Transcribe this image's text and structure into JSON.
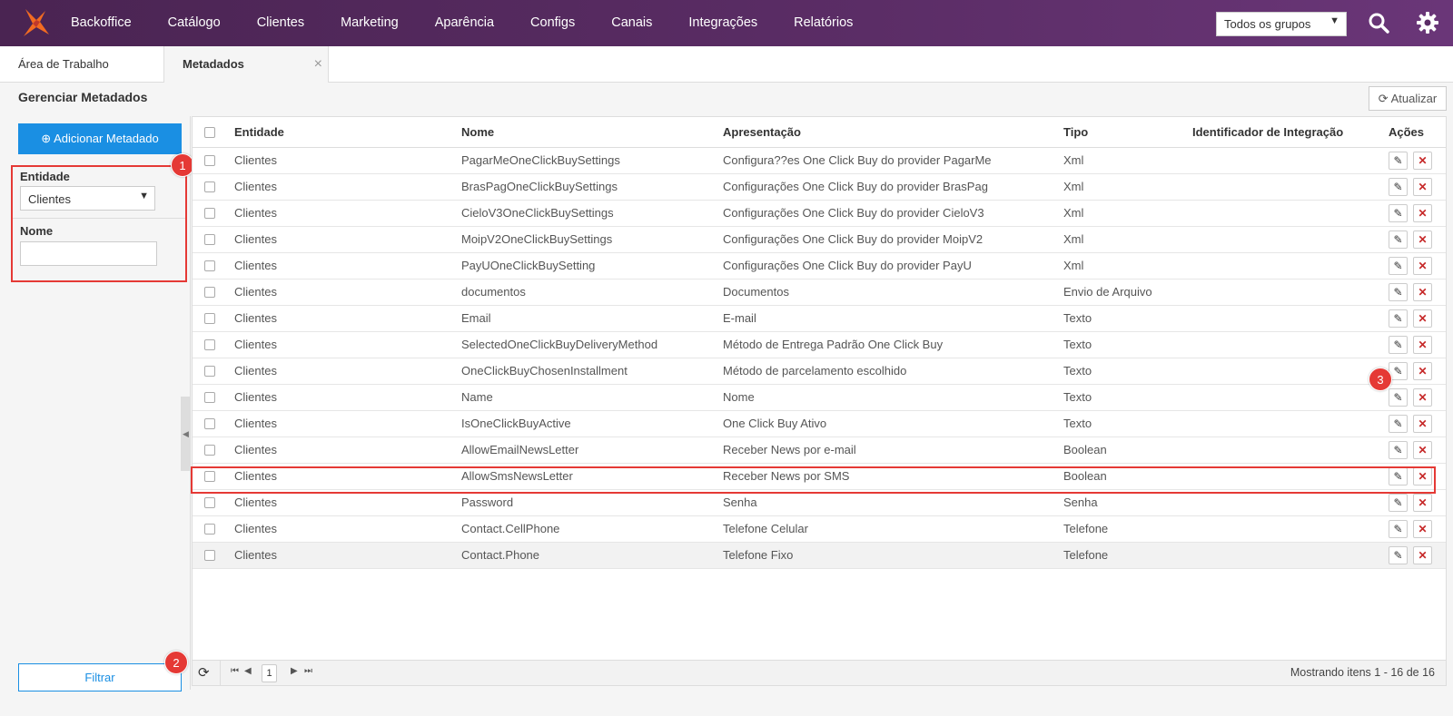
{
  "nav": {
    "items": [
      "Backoffice",
      "Catálogo",
      "Clientes",
      "Marketing",
      "Aparência",
      "Configs",
      "Canais",
      "Integrações",
      "Relatórios"
    ],
    "group_select": "Todos os grupos"
  },
  "tabs": [
    {
      "label": "Área de Trabalho"
    },
    {
      "label": "Metadados",
      "close": "×"
    }
  ],
  "page": {
    "title": "Gerenciar Metadados",
    "refresh_label": "Atualizar"
  },
  "sidebar": {
    "add_label": "Adicionar Metadado",
    "entity_label": "Entidade",
    "entity_value": "Clientes",
    "name_label": "Nome",
    "name_value": "",
    "filter_label": "Filtrar"
  },
  "badges": [
    "1",
    "2",
    "3"
  ],
  "grid": {
    "headers": [
      "Entidade",
      "Nome",
      "Apresentação",
      "Tipo",
      "Identificador de Integração",
      "Ações"
    ],
    "rows": [
      [
        "Clientes",
        "PagarMeOneClickBuySettings",
        "Configura??es One Click Buy do provider PagarMe",
        "Xml",
        ""
      ],
      [
        "Clientes",
        "BrasPagOneClickBuySettings",
        "Configurações One Click Buy do provider BrasPag",
        "Xml",
        ""
      ],
      [
        "Clientes",
        "CieloV3OneClickBuySettings",
        "Configurações One Click Buy do provider CieloV3",
        "Xml",
        ""
      ],
      [
        "Clientes",
        "MoipV2OneClickBuySettings",
        "Configurações One Click Buy do provider MoipV2",
        "Xml",
        ""
      ],
      [
        "Clientes",
        "PayUOneClickBuySetting",
        "Configurações One Click Buy do provider PayU",
        "Xml",
        ""
      ],
      [
        "Clientes",
        "documentos",
        "Documentos",
        "Envio de Arquivo",
        ""
      ],
      [
        "Clientes",
        "Email",
        "E-mail",
        "Texto",
        ""
      ],
      [
        "Clientes",
        "SelectedOneClickBuyDeliveryMethod",
        "Método de Entrega Padrão One Click Buy",
        "Texto",
        ""
      ],
      [
        "Clientes",
        "OneClickBuyChosenInstallment",
        "Método de parcelamento escolhido",
        "Texto",
        ""
      ],
      [
        "Clientes",
        "Name",
        "Nome",
        "Texto",
        ""
      ],
      [
        "Clientes",
        "IsOneClickBuyActive",
        "One Click Buy Ativo",
        "Texto",
        ""
      ],
      [
        "Clientes",
        "AllowEmailNewsLetter",
        "Receber News por e-mail",
        "Boolean",
        ""
      ],
      [
        "Clientes",
        "AllowSmsNewsLetter",
        "Receber News por SMS",
        "Boolean",
        ""
      ],
      [
        "Clientes",
        "Password",
        "Senha",
        "Senha",
        ""
      ],
      [
        "Clientes",
        "Contact.CellPhone",
        "Telefone Celular",
        "Telefone",
        ""
      ],
      [
        "Clientes",
        "Contact.Phone",
        "Telefone Fixo",
        "Telefone",
        ""
      ]
    ]
  },
  "pager": {
    "page": "1",
    "info": "Mostrando itens 1 - 16 de 16"
  },
  "colors": {
    "nav_bg": "#5b2d66",
    "primary": "#1a8fe3",
    "annotation": "#e53935"
  }
}
